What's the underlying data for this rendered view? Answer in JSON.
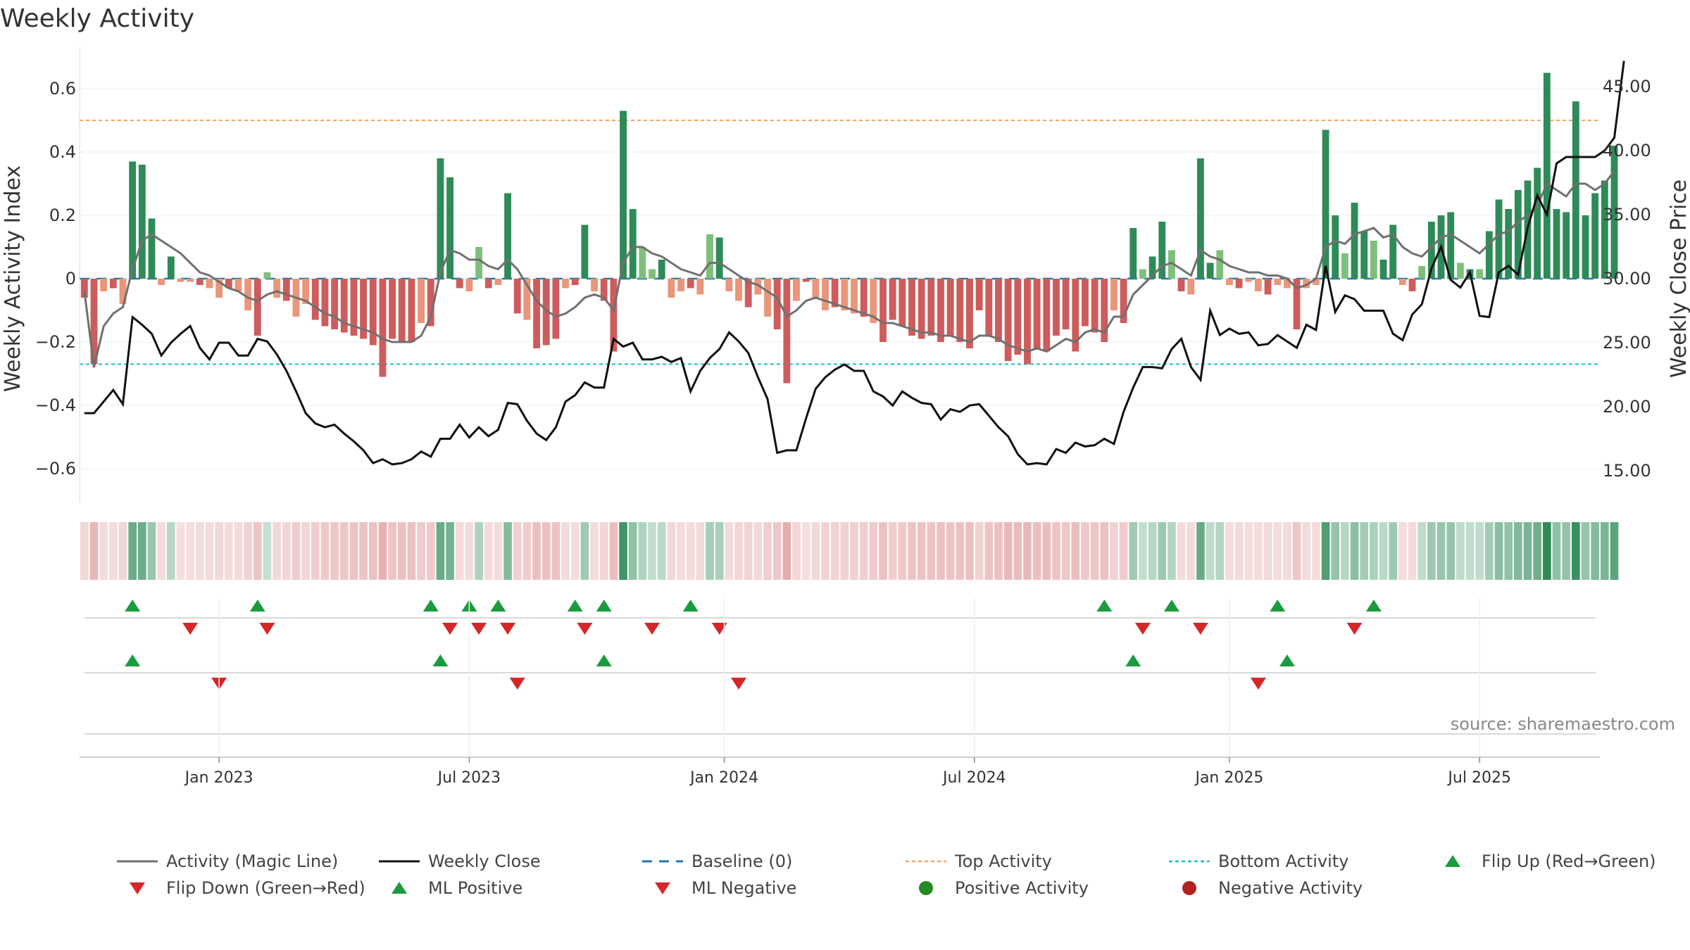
{
  "title": "Weekly Activity",
  "source": "source: sharemaestro.com",
  "colors": {
    "strong_green": "#2e8b57",
    "light_green": "#7fbf7b",
    "strong_red": "#cd5c5c",
    "light_red": "#e9967a",
    "magic_line": "#707070",
    "close": "#111111",
    "baseline": "#1f77b4",
    "top": "#f4a460",
    "bottom": "#17becf",
    "marker_up": "#1a9c3e",
    "marker_down": "#d62728",
    "positive_dot": "#228b22",
    "negative_dot": "#b22222"
  },
  "chart_data": {
    "type": "bar",
    "title": "Weekly Activity",
    "ylabel": "Weekly Activity Index",
    "y2label": "Weekly Close Price",
    "ylim": [
      -0.7,
      0.7
    ],
    "y2lim": [
      12.5,
      47.5
    ],
    "yticks": [
      "0.6",
      "0.4",
      "0.2",
      "0",
      "−0.2",
      "−0.4",
      "−0.6"
    ],
    "yticks_values": [
      0.6,
      0.4,
      0.2,
      0,
      -0.2,
      -0.4,
      -0.6
    ],
    "y2ticks": [
      "45.00",
      "40.00",
      "35.00",
      "30.00",
      "25.00",
      "20.00",
      "15.00"
    ],
    "y2ticks_values": [
      45,
      40,
      35,
      30,
      25,
      20,
      15
    ],
    "top_activity": 0.5,
    "bottom_activity": -0.27,
    "baseline": 0,
    "x_ticks": [
      {
        "label": "Jan 2023",
        "week": 14
      },
      {
        "label": "Jul 2023",
        "week": 40
      },
      {
        "label": "Jan 2024",
        "week": 66.5
      },
      {
        "label": "Jul 2024",
        "week": 92.5
      },
      {
        "label": "Jan 2025",
        "week": 119
      },
      {
        "label": "Jul 2025",
        "week": 145
      }
    ],
    "weeks": 158,
    "activity": [
      -0.06,
      -0.27,
      -0.04,
      -0.03,
      -0.08,
      0.37,
      0.36,
      0.19,
      -0.02,
      0.07,
      -0.01,
      -0.01,
      -0.02,
      -0.03,
      -0.06,
      -0.03,
      -0.04,
      -0.1,
      -0.18,
      0.02,
      -0.06,
      -0.07,
      -0.12,
      -0.08,
      -0.13,
      -0.15,
      -0.16,
      -0.17,
      -0.18,
      -0.19,
      -0.21,
      -0.31,
      -0.19,
      -0.2,
      -0.2,
      -0.14,
      -0.15,
      0.38,
      0.32,
      -0.03,
      -0.04,
      0.1,
      -0.03,
      -0.02,
      0.27,
      -0.11,
      -0.13,
      -0.22,
      -0.21,
      -0.19,
      -0.03,
      -0.02,
      0.17,
      -0.04,
      -0.07,
      -0.23,
      0.53,
      0.22,
      0.1,
      0.03,
      0.06,
      -0.06,
      -0.04,
      -0.03,
      -0.05,
      0.14,
      0.13,
      -0.04,
      -0.07,
      -0.09,
      -0.05,
      -0.12,
      -0.16,
      -0.33,
      -0.07,
      -0.01,
      -0.06,
      -0.1,
      -0.09,
      -0.1,
      -0.11,
      -0.12,
      -0.14,
      -0.2,
      -0.13,
      -0.15,
      -0.18,
      -0.19,
      -0.18,
      -0.2,
      -0.18,
      -0.2,
      -0.22,
      -0.1,
      -0.18,
      -0.2,
      -0.26,
      -0.24,
      -0.27,
      -0.22,
      -0.23,
      -0.18,
      -0.16,
      -0.23,
      -0.15,
      -0.17,
      -0.2,
      -0.1,
      -0.14,
      0.16,
      0.03,
      0.07,
      0.18,
      0.09,
      -0.04,
      -0.05,
      0.38,
      0.05,
      0.09,
      -0.02,
      -0.03,
      -0.01,
      -0.04,
      -0.05,
      -0.02,
      -0.03,
      -0.16,
      -0.03,
      -0.02,
      0.47,
      0.2,
      0.08,
      0.24,
      0.15,
      0.12,
      0.06,
      0.17,
      -0.02,
      -0.04,
      0.04,
      0.18,
      0.2,
      0.21,
      0.05,
      0.03,
      0.03,
      0.15,
      0.25,
      0.22,
      0.28,
      0.31,
      0.35,
      0.65,
      0.22,
      0.21,
      0.56,
      0.2,
      0.27,
      0.31,
      0.42
    ],
    "magic_line": [
      -0.04,
      -0.28,
      -0.15,
      -0.11,
      -0.09,
      0.03,
      0.12,
      0.14,
      0.12,
      0.1,
      0.08,
      0.05,
      0.02,
      0.01,
      -0.01,
      -0.03,
      -0.04,
      -0.06,
      -0.07,
      -0.05,
      -0.04,
      -0.05,
      -0.06,
      -0.07,
      -0.09,
      -0.11,
      -0.12,
      -0.14,
      -0.15,
      -0.16,
      -0.17,
      -0.19,
      -0.2,
      -0.2,
      -0.2,
      -0.18,
      -0.12,
      0.02,
      0.09,
      0.08,
      0.06,
      0.06,
      0.04,
      0.03,
      0.06,
      0.03,
      -0.02,
      -0.07,
      -0.1,
      -0.12,
      -0.11,
      -0.09,
      -0.06,
      -0.05,
      -0.06,
      -0.1,
      0.05,
      0.1,
      0.1,
      0.08,
      0.07,
      0.05,
      0.03,
      0.02,
      0.01,
      0.05,
      0.05,
      0.03,
      0.01,
      -0.01,
      -0.02,
      -0.04,
      -0.06,
      -0.12,
      -0.1,
      -0.07,
      -0.06,
      -0.07,
      -0.08,
      -0.09,
      -0.1,
      -0.11,
      -0.12,
      -0.14,
      -0.14,
      -0.15,
      -0.16,
      -0.17,
      -0.17,
      -0.18,
      -0.18,
      -0.19,
      -0.2,
      -0.18,
      -0.18,
      -0.19,
      -0.21,
      -0.22,
      -0.23,
      -0.22,
      -0.23,
      -0.21,
      -0.19,
      -0.2,
      -0.17,
      -0.16,
      -0.17,
      -0.12,
      -0.12,
      -0.05,
      -0.02,
      0.01,
      0.04,
      0.05,
      0.03,
      0.01,
      0.09,
      0.07,
      0.06,
      0.04,
      0.03,
      0.02,
      0.02,
      0.01,
      0.01,
      0.0,
      -0.03,
      -0.02,
      0.0,
      0.1,
      0.12,
      0.11,
      0.14,
      0.15,
      0.16,
      0.13,
      0.14,
      0.1,
      0.08,
      0.07,
      0.1,
      0.13,
      0.14,
      0.12,
      0.1,
      0.08,
      0.11,
      0.14,
      0.15,
      0.18,
      0.2,
      0.23,
      0.3,
      0.28,
      0.26,
      0.3,
      0.3,
      0.28,
      0.3,
      0.34
    ],
    "weekly_close": [
      19.5,
      19.5,
      20.4,
      21.3,
      20.2,
      27.0,
      26.4,
      25.7,
      24.0,
      25.0,
      25.7,
      26.3,
      24.6,
      23.7,
      25.0,
      25.0,
      24.0,
      24.0,
      25.3,
      25.1,
      24.1,
      22.8,
      21.2,
      19.5,
      18.7,
      18.4,
      18.6,
      17.9,
      17.3,
      16.6,
      15.6,
      15.9,
      15.5,
      15.6,
      15.9,
      16.5,
      16.1,
      17.5,
      17.5,
      18.6,
      17.6,
      18.4,
      17.7,
      18.2,
      20.3,
      20.2,
      18.9,
      17.9,
      17.4,
      18.4,
      20.4,
      20.9,
      21.9,
      21.5,
      21.5,
      25.3,
      24.7,
      25.0,
      23.7,
      23.7,
      23.9,
      23.5,
      23.8,
      21.2,
      22.8,
      23.8,
      24.5,
      25.8,
      25.1,
      24.2,
      22.3,
      20.6,
      16.4,
      16.6,
      16.6,
      19.1,
      21.4,
      22.3,
      22.9,
      23.3,
      22.8,
      22.8,
      21.2,
      20.8,
      20.1,
      21.2,
      20.7,
      20.3,
      20.2,
      19.0,
      19.8,
      19.6,
      20.1,
      20.2,
      19.3,
      18.4,
      17.7,
      16.3,
      15.5,
      15.6,
      15.5,
      16.7,
      16.4,
      17.2,
      16.9,
      17.0,
      17.5,
      17.1,
      19.6,
      21.5,
      23.1,
      23.1,
      23.0,
      24.5,
      25.3,
      23.1,
      22.1,
      27.5,
      25.6,
      26.1,
      25.7,
      25.8,
      24.8,
      24.9,
      25.6,
      25.1,
      24.6,
      26.4,
      26.0,
      31.0,
      27.4,
      28.7,
      28.4,
      27.5,
      27.5,
      27.5,
      25.7,
      25.2,
      27.2,
      28.0,
      30.8,
      32.5,
      29.9,
      29.3,
      30.5,
      27.1,
      27.0,
      30.5,
      31.0,
      30.3,
      34.0,
      36.5,
      35.0,
      39.0,
      39.5,
      39.5,
      39.5,
      39.5,
      40.0,
      41.0,
      47.0
    ],
    "flip_up_weeks": [
      5,
      18,
      36,
      40,
      43,
      51,
      54,
      63,
      106,
      113,
      124,
      134
    ],
    "flip_down_weeks": [
      11,
      19,
      38,
      41,
      44,
      52,
      59,
      66,
      110,
      116,
      132
    ],
    "ml_positive_weeks": [
      5,
      37,
      54,
      109,
      125
    ],
    "ml_negative_weeks": [
      14,
      45,
      68,
      122
    ]
  },
  "legend": [
    {
      "label": "Activity (Magic Line)",
      "symbol": "line-gray"
    },
    {
      "label": "Weekly Close",
      "symbol": "line-black"
    },
    {
      "label": "Baseline (0)",
      "symbol": "dash-blue"
    },
    {
      "label": "Top Activity",
      "symbol": "dot-orange"
    },
    {
      "label": "Bottom Activity",
      "symbol": "dot-cyan"
    },
    {
      "label": "Flip Up (Red→Green)",
      "symbol": "triangle-up"
    },
    {
      "label": "Flip Down (Green→Red)",
      "symbol": "triangle-down"
    },
    {
      "label": "ML Positive",
      "symbol": "triangle-up"
    },
    {
      "label": "ML Negative",
      "symbol": "triangle-down"
    },
    {
      "label": "Positive Activity",
      "symbol": "circle-green"
    },
    {
      "label": "Negative Activity",
      "symbol": "circle-red"
    }
  ]
}
